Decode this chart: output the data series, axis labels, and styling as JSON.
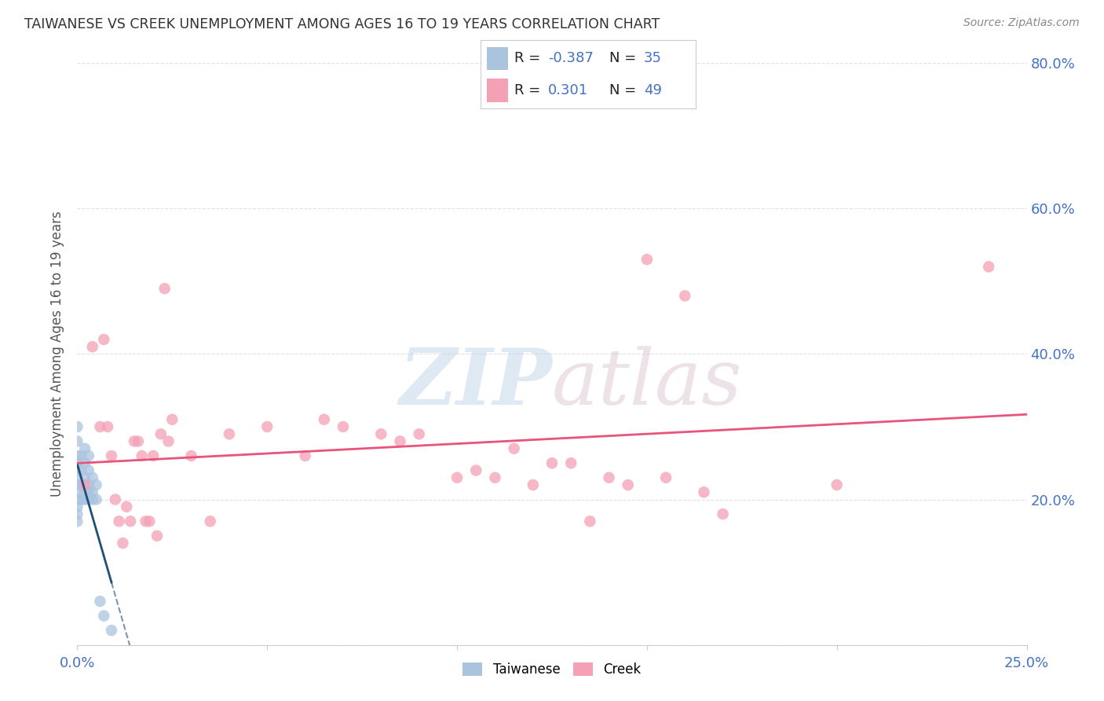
{
  "title": "TAIWANESE VS CREEK UNEMPLOYMENT AMONG AGES 16 TO 19 YEARS CORRELATION CHART",
  "source": "Source: ZipAtlas.com",
  "ylabel": "Unemployment Among Ages 16 to 19 years",
  "xlim": [
    0.0,
    0.25
  ],
  "ylim": [
    0.0,
    0.8
  ],
  "xticks": [
    0.0,
    0.05,
    0.1,
    0.15,
    0.2,
    0.25
  ],
  "xtick_labels": [
    "0.0%",
    "",
    "",
    "",
    "",
    "25.0%"
  ],
  "yticks_right": [
    0.2,
    0.4,
    0.6,
    0.8
  ],
  "ytick_labels_right": [
    "20.0%",
    "40.0%",
    "60.0%",
    "80.0%"
  ],
  "taiwanese_R": -0.387,
  "taiwanese_N": 35,
  "creek_R": 0.301,
  "creek_N": 49,
  "taiwanese_color": "#aac4de",
  "creek_color": "#f4a0b5",
  "taiwanese_line_color": "#1f4e79",
  "creek_line_color": "#e8547a",
  "taiwanese_x": [
    0.0,
    0.0,
    0.0,
    0.0,
    0.0,
    0.0,
    0.0,
    0.0,
    0.0,
    0.0,
    0.0,
    0.0,
    0.001,
    0.001,
    0.001,
    0.001,
    0.002,
    0.002,
    0.002,
    0.002,
    0.002,
    0.002,
    0.003,
    0.003,
    0.003,
    0.003,
    0.003,
    0.004,
    0.004,
    0.004,
    0.005,
    0.005,
    0.006,
    0.007,
    0.009
  ],
  "taiwanese_y": [
    0.3,
    0.28,
    0.26,
    0.25,
    0.24,
    0.23,
    0.22,
    0.21,
    0.2,
    0.19,
    0.18,
    0.17,
    0.26,
    0.24,
    0.22,
    0.2,
    0.27,
    0.25,
    0.23,
    0.22,
    0.21,
    0.2,
    0.26,
    0.24,
    0.22,
    0.21,
    0.2,
    0.23,
    0.21,
    0.2,
    0.22,
    0.2,
    0.06,
    0.04,
    0.02
  ],
  "creek_x": [
    0.002,
    0.004,
    0.006,
    0.007,
    0.008,
    0.009,
    0.01,
    0.011,
    0.012,
    0.013,
    0.014,
    0.015,
    0.016,
    0.017,
    0.018,
    0.019,
    0.02,
    0.021,
    0.022,
    0.023,
    0.024,
    0.025,
    0.03,
    0.035,
    0.04,
    0.05,
    0.06,
    0.065,
    0.07,
    0.08,
    0.085,
    0.09,
    0.1,
    0.105,
    0.11,
    0.115,
    0.12,
    0.125,
    0.13,
    0.135,
    0.14,
    0.145,
    0.15,
    0.155,
    0.16,
    0.165,
    0.17,
    0.2,
    0.24
  ],
  "creek_y": [
    0.22,
    0.41,
    0.3,
    0.42,
    0.3,
    0.26,
    0.2,
    0.17,
    0.14,
    0.19,
    0.17,
    0.28,
    0.28,
    0.26,
    0.17,
    0.17,
    0.26,
    0.15,
    0.29,
    0.49,
    0.28,
    0.31,
    0.26,
    0.17,
    0.29,
    0.3,
    0.26,
    0.31,
    0.3,
    0.29,
    0.28,
    0.29,
    0.23,
    0.24,
    0.23,
    0.27,
    0.22,
    0.25,
    0.25,
    0.17,
    0.23,
    0.22,
    0.53,
    0.23,
    0.48,
    0.21,
    0.18,
    0.22,
    0.52
  ],
  "background_color": "#ffffff",
  "grid_color": "#e0e0e0",
  "title_color": "#333333",
  "source_color": "#888888",
  "axis_label_color": "#555555",
  "tick_color": "#4472c4"
}
